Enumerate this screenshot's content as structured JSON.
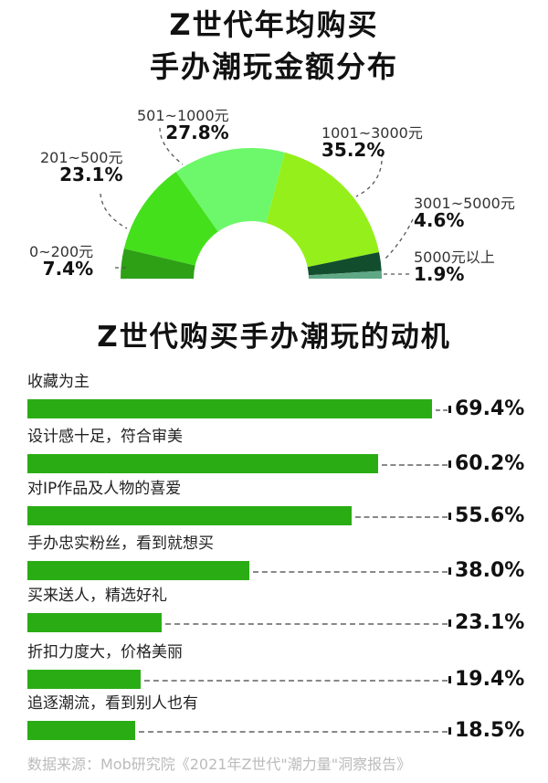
{
  "chart_data": [
    {
      "type": "pie",
      "subtype": "half-donut",
      "title": "Z世代年均购买手办潮玩金额分布",
      "categories": [
        "0~200元",
        "201~500元",
        "501~1000元",
        "1001~3000元",
        "3001~5000元",
        "5000元以上"
      ],
      "values": [
        7.4,
        23.1,
        27.8,
        35.2,
        4.6,
        1.9
      ],
      "value_labels": [
        "7.4%",
        "23.1%",
        "27.8%",
        "35.2%",
        "4.6%",
        "1.9%"
      ],
      "colors": [
        "#2ea016",
        "#44e01c",
        "#6cf86a",
        "#95ef1a",
        "#124d2e",
        "#5fa886"
      ],
      "unit": "%"
    },
    {
      "type": "bar",
      "orientation": "horizontal",
      "title": "Z世代购买手办潮玩的动机",
      "categories": [
        "收藏为主",
        "设计感十足，符合审美",
        "对IP作品及人物的喜爱",
        "手办忠实粉丝，看到就想买",
        "买来送人，精选好礼",
        "折扣力度大，价格美丽",
        "追逐潮流，看到别人也有"
      ],
      "values": [
        69.4,
        60.2,
        55.6,
        38.0,
        23.1,
        19.4,
        18.5
      ],
      "value_labels": [
        "69.4%",
        "60.2%",
        "55.6%",
        "38.0%",
        "23.1%",
        "19.4%",
        "18.5%"
      ],
      "xlabel": "",
      "ylabel": "",
      "unit": "%",
      "bar_color": "#2aad14",
      "grid": false
    }
  ],
  "titles": {
    "spend_line1": "Z世代年均购买",
    "spend_line2": "手办潮玩金额分布",
    "motive": "Z世代购买手办潮玩的动机"
  },
  "source": "数据来源：Mob研究院《2021年Z世代\"潮力量\"洞察报告》"
}
